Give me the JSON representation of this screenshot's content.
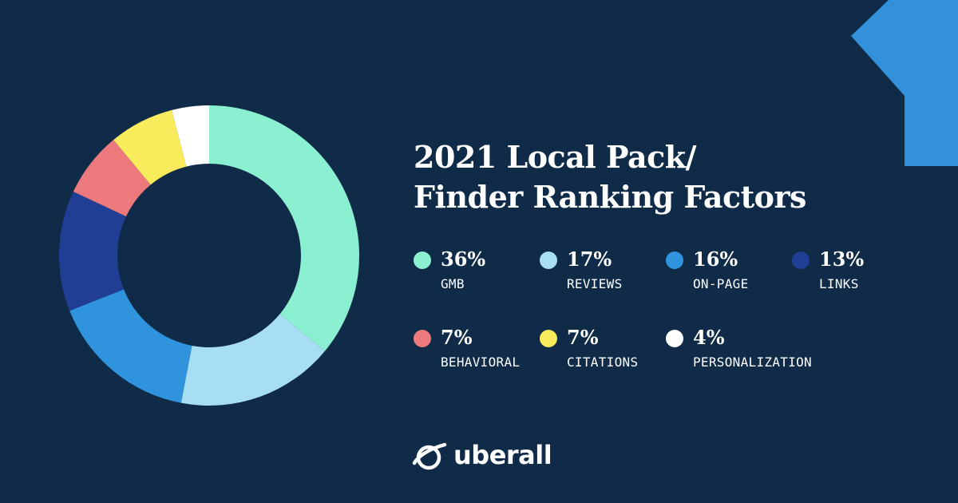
{
  "title_lines": [
    "2021 Local Pack/",
    "Finder Ranking Factors"
  ],
  "brand": {
    "name": "uberall",
    "logo_icon": "planet-ring-icon"
  },
  "colors": {
    "background": "#0f2b48",
    "accent_shape": "#3391dc"
  },
  "chart_data": {
    "type": "pie",
    "style": "donut",
    "title": "2021 Local Pack/ Finder Ranking Factors",
    "unit": "%",
    "legend_placement": "right",
    "slices": [
      {
        "name": "GMB",
        "value": 36,
        "label": "36%",
        "color": "#8bf0d2"
      },
      {
        "name": "REVIEWS",
        "value": 17,
        "label": "17%",
        "color": "#a8def3"
      },
      {
        "name": "ON-PAGE",
        "value": 16,
        "label": "16%",
        "color": "#2f93dd"
      },
      {
        "name": "LINKS",
        "value": 13,
        "label": "13%",
        "color": "#1f3e94"
      },
      {
        "name": "BEHAVIORAL",
        "value": 7,
        "label": "7%",
        "color": "#ec7a7d"
      },
      {
        "name": "CITATIONS",
        "value": 7,
        "label": "7%",
        "color": "#f8ec5d"
      },
      {
        "name": "PERSONALIZATION",
        "value": 4,
        "label": "4%",
        "color": "#ffffff"
      }
    ]
  }
}
